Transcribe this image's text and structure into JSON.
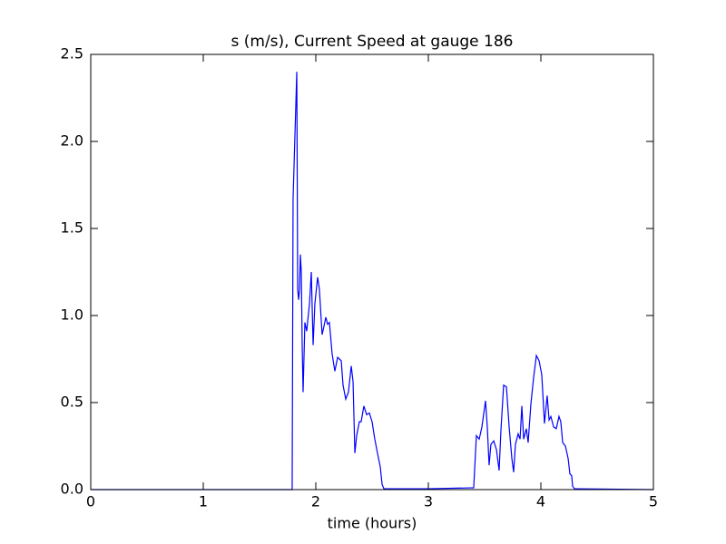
{
  "chart_data": {
    "type": "line",
    "title": "s (m/s), Current Speed at gauge 186",
    "xlabel": "time (hours)",
    "x": [
      0,
      1.79,
      1.798,
      1.831,
      1.839,
      1.847,
      1.855,
      1.863,
      1.871,
      1.879,
      1.887,
      1.903,
      1.919,
      1.944,
      1.96,
      1.976,
      1.992,
      2.016,
      2.032,
      2.056,
      2.073,
      2.089,
      2.105,
      2.121,
      2.145,
      2.169,
      2.194,
      2.226,
      2.242,
      2.266,
      2.29,
      2.315,
      2.331,
      2.347,
      2.363,
      2.387,
      2.403,
      2.427,
      2.452,
      2.476,
      2.5,
      2.524,
      2.548,
      2.573,
      2.589,
      2.605,
      3.0,
      3.371,
      3.403,
      3.427,
      3.452,
      3.476,
      3.508,
      3.524,
      3.54,
      3.556,
      3.581,
      3.605,
      3.629,
      3.645,
      3.669,
      3.694,
      3.718,
      3.742,
      3.758,
      3.774,
      3.798,
      3.815,
      3.831,
      3.847,
      3.871,
      3.887,
      3.911,
      3.935,
      3.96,
      3.984,
      4.008,
      4.032,
      4.056,
      4.073,
      4.089,
      4.113,
      4.137,
      4.161,
      4.177,
      4.194,
      4.218,
      4.242,
      4.258,
      4.274,
      4.282,
      4.298,
      5
    ],
    "series": [
      {
        "color": "#0000ff",
        "values": [
          0,
          0,
          1.67,
          2.4,
          1.15,
          1.09,
          1.15,
          1.35,
          1.25,
          0.83,
          0.56,
          0.96,
          0.91,
          1.07,
          1.25,
          0.83,
          1.07,
          1.22,
          1.15,
          0.89,
          0.94,
          0.99,
          0.95,
          0.96,
          0.78,
          0.68,
          0.76,
          0.74,
          0.6,
          0.52,
          0.56,
          0.71,
          0.62,
          0.21,
          0.31,
          0.39,
          0.39,
          0.48,
          0.43,
          0.44,
          0.39,
          0.29,
          0.21,
          0.13,
          0.03,
          0.005,
          0.005,
          0.01,
          0.01,
          0.31,
          0.29,
          0.36,
          0.51,
          0.36,
          0.14,
          0.26,
          0.28,
          0.23,
          0.11,
          0.34,
          0.6,
          0.59,
          0.36,
          0.18,
          0.1,
          0.26,
          0.32,
          0.29,
          0.48,
          0.29,
          0.35,
          0.27,
          0.49,
          0.64,
          0.77,
          0.74,
          0.66,
          0.38,
          0.54,
          0.4,
          0.42,
          0.36,
          0.35,
          0.42,
          0.39,
          0.27,
          0.25,
          0.18,
          0.09,
          0.08,
          0.02,
          0.005,
          0
        ]
      }
    ],
    "xlim": [
      0,
      5
    ],
    "xticks": [
      0,
      1,
      2,
      3,
      4,
      5
    ],
    "ylim": [
      0,
      2.5
    ],
    "yticks": [
      {
        "value": 0,
        "label": "0.0"
      },
      0.5,
      {
        "value": 1,
        "label": "1.0"
      },
      1.5,
      {
        "value": 2,
        "label": "2.0"
      },
      2.5
    ],
    "grid": false
  }
}
